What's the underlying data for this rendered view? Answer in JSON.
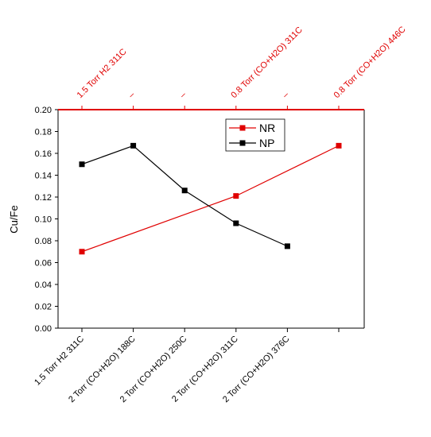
{
  "chart_data": {
    "type": "line",
    "ylabel": "Cu/Fe",
    "categories": [
      "1.5 Torr H2 311C",
      "2 Torr (CO+H2O) 188C",
      "2 Torr (CO+H2O) 250C",
      "2 Torr (CO+H2O) 311C",
      "2 Torr (CO+H2O) 376C",
      null
    ],
    "top_categories": [
      "1.5 Torr H2 311C",
      "–",
      "–",
      "0.8 Torr (CO+H2O) 311C",
      "–",
      "0.8 Torr (CO+H2O) 446C"
    ],
    "top_color": "#e00000",
    "series": [
      {
        "name": "NR",
        "color": "#e00000",
        "x": [
          0,
          3,
          5
        ],
        "values": [
          0.07,
          0.121,
          0.167
        ]
      },
      {
        "name": "NP",
        "color": "#000000",
        "values": [
          0.15,
          0.167,
          0.126,
          0.096,
          0.075,
          null
        ]
      }
    ],
    "ylim": [
      0,
      0.2
    ],
    "yticks": [
      {
        "value": 0,
        "label": "0.00"
      },
      {
        "value": 0.02,
        "label": "0.02"
      },
      {
        "value": 0.04,
        "label": "0.04"
      },
      {
        "value": 0.06,
        "label": "0.06"
      },
      {
        "value": 0.08,
        "label": "0.08"
      },
      {
        "value": 0.1,
        "label": "0.10"
      },
      {
        "value": 0.12,
        "label": "0.12"
      },
      {
        "value": 0.14,
        "label": "0.14"
      },
      {
        "value": 0.16,
        "label": "0.16"
      },
      {
        "value": 0.18,
        "label": "0.18"
      },
      {
        "value": 0.2,
        "label": "0.20"
      }
    ]
  }
}
